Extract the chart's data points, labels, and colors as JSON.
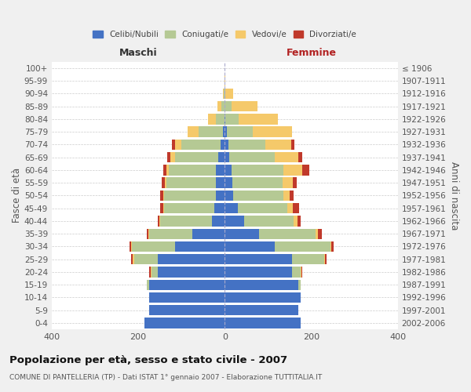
{
  "age_groups": [
    "0-4",
    "5-9",
    "10-14",
    "15-19",
    "20-24",
    "25-29",
    "30-34",
    "35-39",
    "40-44",
    "45-49",
    "50-54",
    "55-59",
    "60-64",
    "65-69",
    "70-74",
    "75-79",
    "80-84",
    "85-89",
    "90-94",
    "95-99",
    "100+"
  ],
  "birth_years": [
    "2002-2006",
    "1997-2001",
    "1992-1996",
    "1987-1991",
    "1982-1986",
    "1977-1981",
    "1972-1976",
    "1967-1971",
    "1962-1966",
    "1957-1961",
    "1952-1956",
    "1947-1951",
    "1942-1946",
    "1937-1941",
    "1932-1936",
    "1927-1931",
    "1922-1926",
    "1917-1921",
    "1912-1916",
    "1907-1911",
    "≤ 1906"
  ],
  "maschi_celibe": [
    185,
    175,
    175,
    175,
    155,
    155,
    115,
    75,
    30,
    25,
    20,
    20,
    20,
    15,
    10,
    5,
    0,
    0,
    0,
    0,
    0
  ],
  "maschi_coniugato": [
    0,
    0,
    0,
    5,
    15,
    55,
    100,
    100,
    120,
    115,
    120,
    115,
    110,
    100,
    90,
    55,
    20,
    8,
    2,
    0,
    0
  ],
  "maschi_vedovo": [
    0,
    0,
    0,
    0,
    2,
    3,
    2,
    2,
    2,
    2,
    3,
    3,
    5,
    10,
    15,
    25,
    18,
    8,
    2,
    0,
    0
  ],
  "maschi_divorziato": [
    0,
    0,
    0,
    0,
    2,
    3,
    3,
    3,
    3,
    7,
    7,
    8,
    8,
    8,
    8,
    0,
    0,
    0,
    0,
    0,
    0
  ],
  "femmine_celibe": [
    175,
    170,
    175,
    170,
    155,
    155,
    115,
    80,
    45,
    30,
    20,
    18,
    15,
    10,
    8,
    5,
    2,
    0,
    0,
    0,
    0
  ],
  "femmine_coniugata": [
    0,
    0,
    0,
    5,
    20,
    75,
    130,
    130,
    115,
    115,
    115,
    115,
    120,
    105,
    85,
    60,
    30,
    15,
    2,
    0,
    0
  ],
  "femmine_vedova": [
    0,
    0,
    0,
    0,
    2,
    2,
    2,
    5,
    8,
    12,
    15,
    25,
    45,
    55,
    60,
    90,
    90,
    60,
    18,
    2,
    0
  ],
  "femmine_divorziata": [
    0,
    0,
    0,
    0,
    2,
    3,
    5,
    10,
    8,
    15,
    10,
    8,
    15,
    10,
    8,
    0,
    0,
    0,
    0,
    0,
    0
  ],
  "colors": {
    "celibe": "#4472C4",
    "coniugato": "#b5c994",
    "vedovo": "#f5c96a",
    "divorziato": "#c0392b"
  },
  "xlim": 400,
  "title": "Popolazione per età, sesso e stato civile - 2007",
  "subtitle": "COMUNE DI PANTELLERIA (TP) - Dati ISTAT 1° gennaio 2007 - Elaborazione TUTTITALIA.IT",
  "ylabel_left": "Fasce di età",
  "ylabel_right": "Anni di nascita",
  "legend_labels": [
    "Celibi/Nubili",
    "Coniugati/e",
    "Vedovi/e",
    "Divorziati/e"
  ],
  "bg_color": "#f0f0f0",
  "plot_bg": "#ffffff"
}
